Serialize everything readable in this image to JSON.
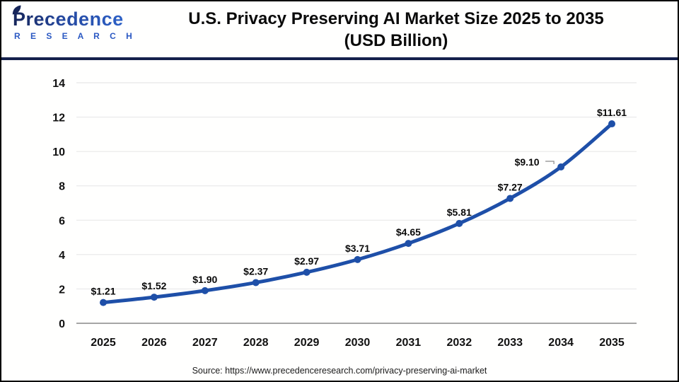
{
  "header": {
    "logo_name": "Precedence",
    "logo_sub": "R E S E A R C H",
    "title_line1": "U.S. Privacy Preserving AI Market Size 2025 to 2035",
    "title_line2": "(USD Billion)"
  },
  "chart_data": {
    "type": "line",
    "title": "U.S. Privacy Preserving AI Market Size 2025 to 2035 (USD Billion)",
    "categories": [
      "2025",
      "2026",
      "2027",
      "2028",
      "2029",
      "2030",
      "2031",
      "2032",
      "2033",
      "2034",
      "2035"
    ],
    "values": [
      1.21,
      1.52,
      1.9,
      2.37,
      2.97,
      3.71,
      4.65,
      5.81,
      7.27,
      9.1,
      11.61
    ],
    "point_labels": [
      "$1.21",
      "$1.52",
      "$1.90",
      "$2.37",
      "$2.97",
      "$3.71",
      "$4.65",
      "$5.81",
      "$7.27",
      "$9.10",
      "$11.61"
    ],
    "xlabel": "",
    "ylabel": "",
    "ylim": [
      0,
      14
    ],
    "ytick_step": 2,
    "grid": "horizontal",
    "legend": "none",
    "line_color": "#1e4fa8",
    "marker_color": "#1e4fa8",
    "grid_color": "#ececec",
    "axis_color": "#a6a6a6",
    "label_color": "#0a0a0a"
  },
  "footer": {
    "source": "Source: https://www.precedenceresearch.com/privacy-preserving-ai-market"
  }
}
